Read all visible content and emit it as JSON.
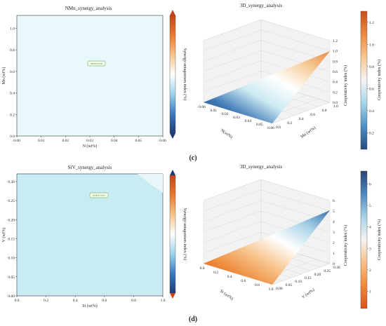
{
  "panel_c": {
    "label": "(c)",
    "contour": {
      "title": "NMn_synergy_analysis",
      "xlabel": "N (wt%)",
      "ylabel": "Mn (wt%)",
      "x_ticks": [
        "0.00",
        "0.01",
        "0.02",
        "0.03",
        "0.04",
        "0.05",
        "0.06"
      ],
      "y_ticks": [
        "0.0",
        "0.2",
        "0.4",
        "0.6",
        "0.8",
        "1.0"
      ],
      "xlim": [
        0,
        0.06
      ],
      "ylim": [
        0,
        1.12
      ],
      "annotation": "neutral zone",
      "fill_color": "#e9f9fb",
      "colorbar_label": "Synergy/antagonism index (%)",
      "colorbar_colors": [
        "#1f3b73",
        "#3b7bbf",
        "#9fd4ea",
        "#ffffff",
        "#f6c48a",
        "#e9792f",
        "#c2461a"
      ]
    },
    "surface3d": {
      "title": "3D_synergy_analysis",
      "xlabel": "N(wt%)",
      "ylabel": "Mn (wt%)",
      "zlabel": "Cooperativity index (%)",
      "x_ticks": [
        "0.00",
        "0.01",
        "0.02",
        "0.03",
        "0.04",
        "0.05",
        "0.06"
      ],
      "y_ticks": [
        "0.0",
        "0.2",
        "0.4",
        "0.6",
        "0.8",
        "1.0"
      ],
      "z_ticks": [
        "0.0",
        "0.2",
        "0.4",
        "0.6",
        "0.8",
        "1.0",
        "1.2"
      ],
      "zlim": [
        0,
        1.3
      ],
      "colorbar_label": "Cooperativity index (%)",
      "colorbar_ticks": [
        "0.2",
        "0.4",
        "0.6",
        "0.8",
        "1.0",
        "1.2"
      ],
      "colorbar_range": [
        0.05,
        1.3
      ],
      "colorbar_colors": [
        "#2a4a7f",
        "#4f8fc0",
        "#a6d6e8",
        "#f4f4f4",
        "#f7c894",
        "#ea8a3e",
        "#c8501d"
      ]
    }
  },
  "panel_d": {
    "label": "(d)",
    "contour": {
      "title": "SiV_synergy_analysis",
      "xlabel": "Si (wt%)",
      "ylabel": "V (wt%)",
      "x_ticks": [
        "0.0",
        "0.2",
        "0.4",
        "0.6",
        "0.8",
        "1.0"
      ],
      "y_ticks": [
        "0.00",
        "0.05",
        "0.10",
        "0.15",
        "0.20",
        "0.25",
        "0.30"
      ],
      "xlim": [
        0,
        1.0
      ],
      "ylim": [
        0,
        0.32
      ],
      "annotation": "neutral zone",
      "fill_color": "#c9ecf3",
      "corner_color": "#e8f6f9",
      "colorbar_label": "Synergy/antagonism index (%)",
      "colorbar_colors": [
        "#1f3b73",
        "#3b7bbf",
        "#9fd4ea",
        "#ffffff",
        "#f6c48a",
        "#e9792f",
        "#c2461a"
      ]
    },
    "surface3d": {
      "title": "3D_synergy_analysis",
      "xlabel": "Si (wt%)",
      "ylabel": "V (wt%)",
      "zlabel": "Cooperativity index (%)",
      "x_ticks": [
        "0.0",
        "0.2",
        "0.4",
        "0.6",
        "0.8",
        "1.0"
      ],
      "y_ticks": [
        "0.00",
        "0.05",
        "0.10",
        "0.15",
        "0.20",
        "0.25",
        "0.30"
      ],
      "z_ticks": [
        "0",
        "1",
        "2",
        "3",
        "4",
        "5",
        "6"
      ],
      "zlim": [
        0,
        6.5
      ],
      "colorbar_label": "Cooperativity index (%)",
      "colorbar_ticks": [
        "1",
        "2",
        "3",
        "4",
        "5",
        "6"
      ],
      "colorbar_range": [
        0.2,
        6.6
      ],
      "colorbar_colors": [
        "#d9531e",
        "#ef8a3a",
        "#f7c088",
        "#f4f4f4",
        "#a9d2e6",
        "#4f86bd",
        "#27456f"
      ]
    }
  }
}
